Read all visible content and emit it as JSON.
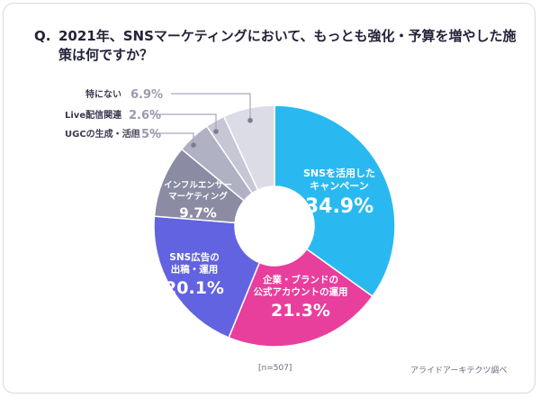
{
  "question": {
    "mark": "Q.",
    "text": "2021年、SNSマーケティングにおいて、もっとも強化・予算を増やした施策は何ですか？"
  },
  "sample_size": "[n=507]",
  "source": "アライドアーキテクツ調べ",
  "chart_data": {
    "type": "pie",
    "title": "",
    "slices": [
      {
        "label": "SNSを活用したキャンペーン",
        "label_lines": [
          "SNSを活用した",
          "キャンペーン"
        ],
        "value": 34.9,
        "value_label": "34.9%",
        "color": "#29b9f0"
      },
      {
        "label": "企業・ブランドの公式アカウントの運用",
        "label_lines": [
          "企業・ブランドの",
          "公式アカウントの運用"
        ],
        "value": 21.3,
        "value_label": "21.3%",
        "color": "#e83e9c"
      },
      {
        "label": "SNS広告の出稿・運用",
        "label_lines": [
          "SNS広告の",
          "出稿・運用"
        ],
        "value": 20.1,
        "value_label": "20.1%",
        "color": "#6263e0"
      },
      {
        "label": "インフルエンサーマーケティング",
        "label_lines": [
          "インフルエンサー",
          "マーケティング"
        ],
        "value": 9.7,
        "value_label": "9.7%",
        "color": "#8b8ba3"
      },
      {
        "label": "UGCの生成・活用",
        "label_lines": [
          "UGCの生成・活用"
        ],
        "value": 4.5,
        "value_label": "4.5%",
        "color": "#b1b1c4"
      },
      {
        "label": "Live配信関連",
        "label_lines": [
          "Live配信関連"
        ],
        "value": 2.6,
        "value_label": "2.6%",
        "color": "#c6c6d5"
      },
      {
        "label": "特にない",
        "label_lines": [
          "特にない"
        ],
        "value": 6.9,
        "value_label": "6.9%",
        "color": "#dcdce7"
      }
    ]
  }
}
